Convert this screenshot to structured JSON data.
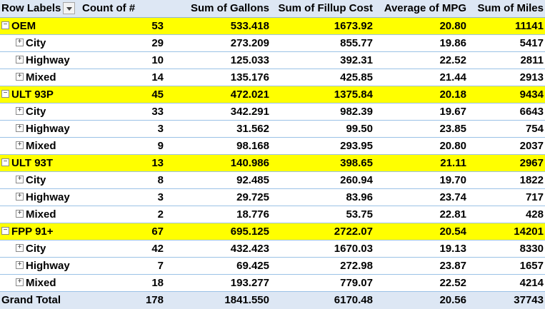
{
  "headers": [
    "Row Labels",
    "Count of #",
    "Sum of Gallons",
    "Sum of Fillup Cost",
    "Average of MPG",
    "Sum of Miles"
  ],
  "groups": [
    {
      "label": "OEM",
      "values": [
        "53",
        "533.418",
        "1673.92",
        "20.80",
        "11141"
      ],
      "children": [
        {
          "label": "City",
          "values": [
            "29",
            "273.209",
            "855.77",
            "19.86",
            "5417"
          ]
        },
        {
          "label": "Highway",
          "values": [
            "10",
            "125.033",
            "392.31",
            "22.52",
            "2811"
          ]
        },
        {
          "label": "Mixed",
          "values": [
            "14",
            "135.176",
            "425.85",
            "21.44",
            "2913"
          ]
        }
      ]
    },
    {
      "label": "ULT 93P",
      "values": [
        "45",
        "472.021",
        "1375.84",
        "20.18",
        "9434"
      ],
      "children": [
        {
          "label": "City",
          "values": [
            "33",
            "342.291",
            "982.39",
            "19.67",
            "6643"
          ]
        },
        {
          "label": "Highway",
          "values": [
            "3",
            "31.562",
            "99.50",
            "23.85",
            "754"
          ]
        },
        {
          "label": "Mixed",
          "values": [
            "9",
            "98.168",
            "293.95",
            "20.80",
            "2037"
          ]
        }
      ]
    },
    {
      "label": "ULT 93T",
      "values": [
        "13",
        "140.986",
        "398.65",
        "21.11",
        "2967"
      ],
      "children": [
        {
          "label": "City",
          "values": [
            "8",
            "92.485",
            "260.94",
            "19.70",
            "1822"
          ]
        },
        {
          "label": "Highway",
          "values": [
            "3",
            "29.725",
            "83.96",
            "23.74",
            "717"
          ]
        },
        {
          "label": "Mixed",
          "values": [
            "2",
            "18.776",
            "53.75",
            "22.81",
            "428"
          ]
        }
      ]
    },
    {
      "label": "FPP 91+",
      "values": [
        "67",
        "695.125",
        "2722.07",
        "20.54",
        "14201"
      ],
      "children": [
        {
          "label": "City",
          "values": [
            "42",
            "432.423",
            "1670.03",
            "19.13",
            "8330"
          ]
        },
        {
          "label": "Highway",
          "values": [
            "7",
            "69.425",
            "272.98",
            "23.87",
            "1657"
          ]
        },
        {
          "label": "Mixed",
          "values": [
            "18",
            "193.277",
            "779.07",
            "22.52",
            "4214"
          ]
        }
      ]
    }
  ],
  "grand_total": {
    "label": "Grand Total",
    "values": [
      "178",
      "1841.550",
      "6170.48",
      "20.56",
      "37743"
    ]
  },
  "colors": {
    "group_highlight": "#ffff00",
    "header_fill": "#dde7f4",
    "row_border": "#9bc2e6"
  },
  "icons": {
    "collapse": "minus-box-icon",
    "expand": "plus-box-icon",
    "filter": "dropdown-arrow-icon"
  }
}
